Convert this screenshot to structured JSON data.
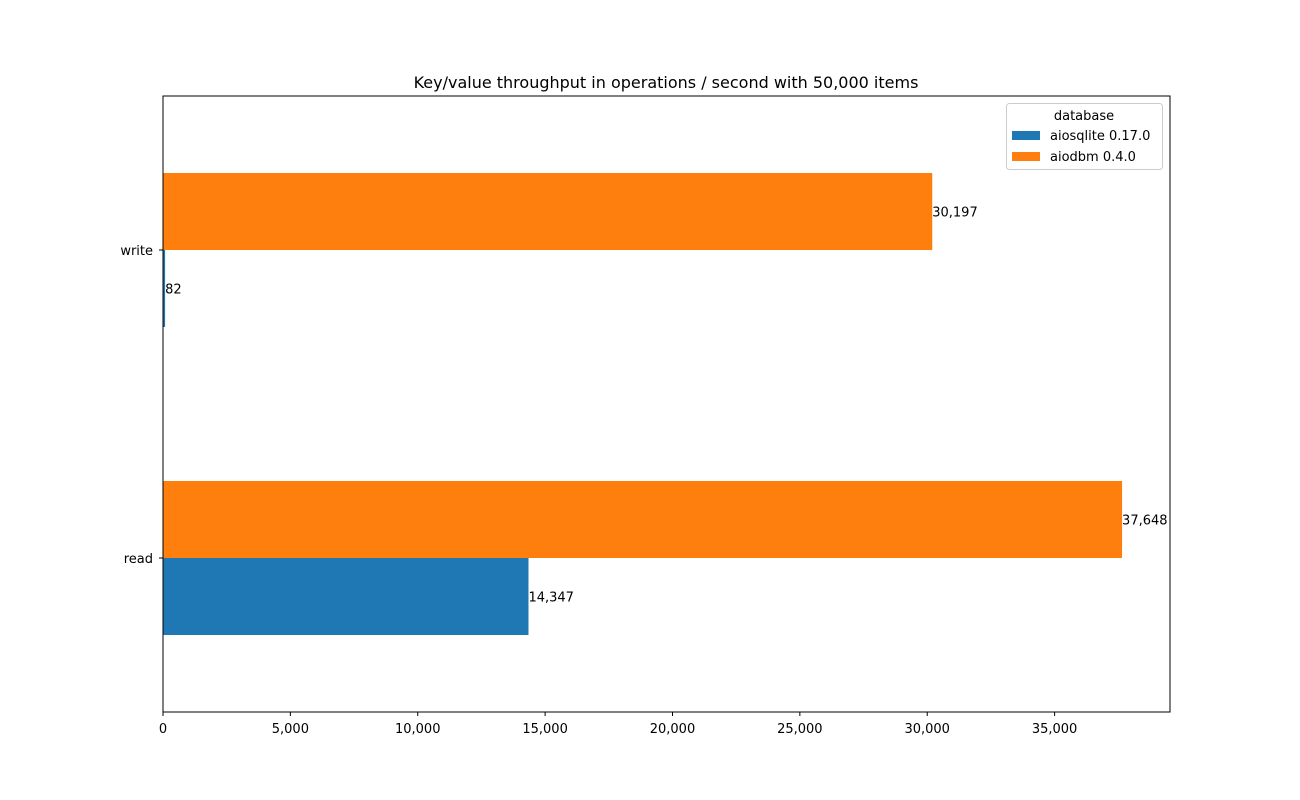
{
  "chart_data": {
    "type": "bar",
    "orientation": "horizontal",
    "title": "Key/value throughput in operations / second with 50,000 items",
    "xlabel": "",
    "ylabel": "",
    "categories": [
      "read",
      "write"
    ],
    "series": [
      {
        "name": "aiosqlite 0.17.0",
        "values": [
          14347,
          82
        ],
        "labels": [
          "14,347",
          "82"
        ],
        "color": "#1f77b4"
      },
      {
        "name": "aiodbm 0.4.0",
        "values": [
          37648,
          30197
        ],
        "labels": [
          "37,648",
          "30,197"
        ],
        "color": "#ff7f0e"
      }
    ],
    "xlim": [
      0,
      39530
    ],
    "xticks": [
      0,
      5000,
      10000,
      15000,
      20000,
      25000,
      30000,
      35000
    ],
    "xtick_labels": [
      "0",
      "5,000",
      "10,000",
      "15,000",
      "20,000",
      "25,000",
      "30,000",
      "35,000"
    ],
    "grid": false,
    "legend": {
      "title": "database",
      "placement": "top-right"
    }
  }
}
